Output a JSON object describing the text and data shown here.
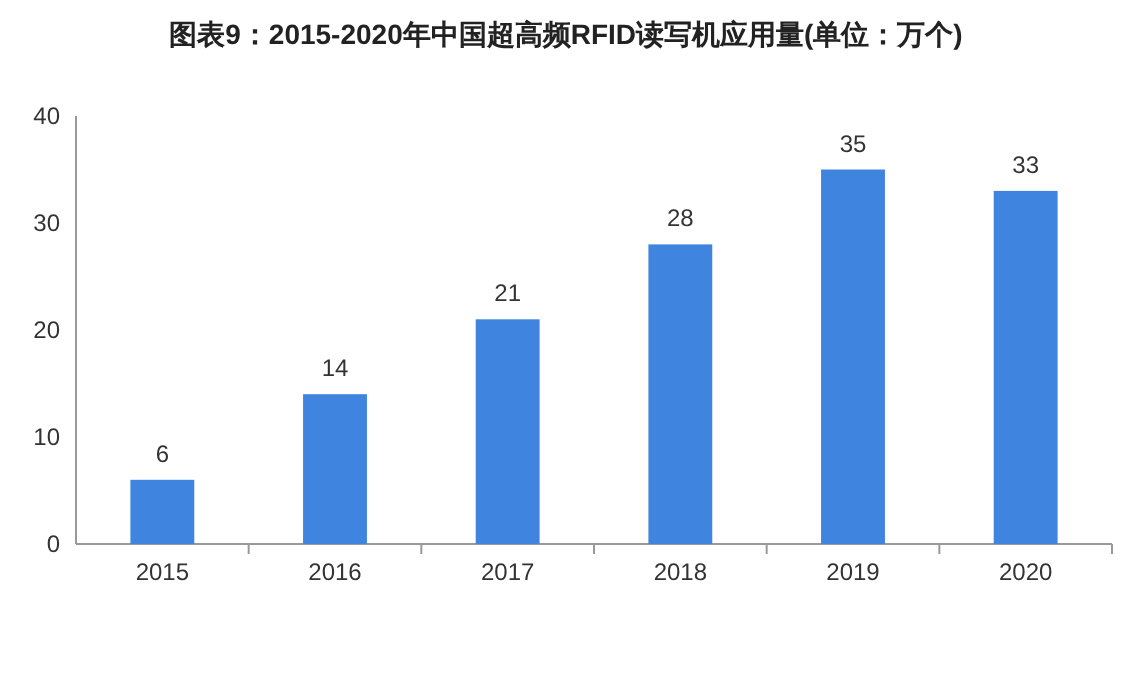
{
  "chart_data": {
    "type": "bar",
    "title": "图表9：2015-2020年中国超高频RFID读写机应用量(单位：万个)",
    "categories": [
      "2015",
      "2016",
      "2017",
      "2018",
      "2019",
      "2020"
    ],
    "values": [
      6,
      14,
      21,
      28,
      35,
      33
    ],
    "color": "#3f85e0",
    "ylim": [
      0,
      40
    ],
    "yticks": [
      0,
      10,
      20,
      30,
      40
    ],
    "grid": false,
    "data_labels": true
  }
}
